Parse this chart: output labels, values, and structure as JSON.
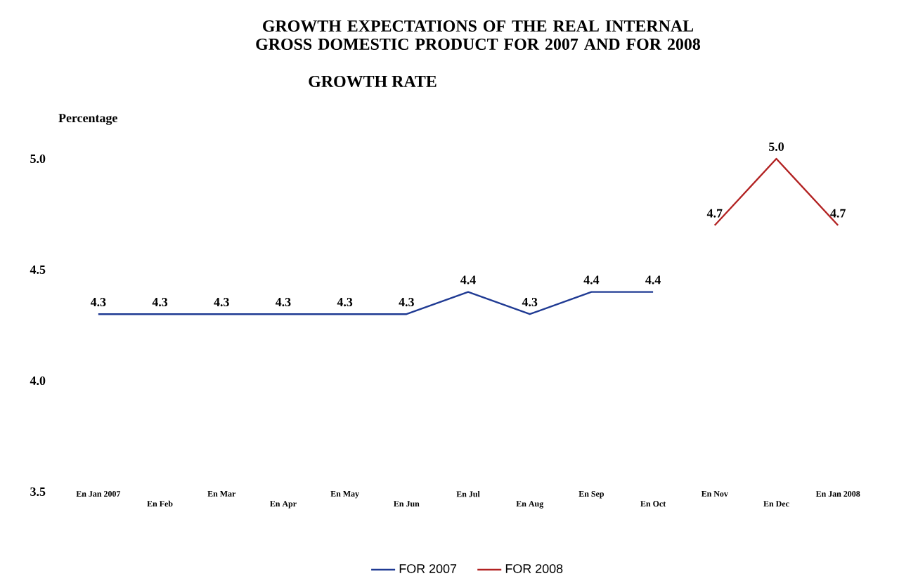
{
  "chart_data": {
    "type": "line",
    "title": "GROWTH EXPECTATIONS OF THE REAL INTERNAL GROSS DOMESTIC PRODUCT FOR 2007 AND FOR 2008",
    "subtitle": "GROWTH RATE",
    "ylabel": "Percentage",
    "categories": [
      "En Jan 2007",
      "En Feb",
      "En Mar",
      "En Apr",
      "En May",
      "En Jun",
      "En Jul",
      "En Aug",
      "En Sep",
      "En Oct",
      "En Nov",
      "En Dec",
      "En Jan 2008"
    ],
    "series": [
      {
        "name": "FOR 2007",
        "color": "#1f3a93",
        "values": [
          4.3,
          4.3,
          4.3,
          4.3,
          4.3,
          4.3,
          4.4,
          4.3,
          4.4,
          4.4,
          null,
          null,
          null
        ],
        "value_labels": [
          "4.3",
          "4.3",
          "4.3",
          "4.3",
          "4.3",
          "4.3",
          "4.4",
          "4.3",
          "4.4",
          "4.4",
          null,
          null,
          null
        ]
      },
      {
        "name": "FOR 2008",
        "color": "#b22222",
        "values": [
          null,
          null,
          null,
          null,
          null,
          null,
          null,
          null,
          null,
          null,
          4.7,
          5.0,
          4.7
        ],
        "value_labels": [
          null,
          null,
          null,
          null,
          null,
          null,
          null,
          null,
          null,
          null,
          "4.7",
          "5.0",
          "4.7"
        ]
      }
    ],
    "ylim": [
      3.5,
      5.0
    ],
    "yticks": [
      3.5,
      {
        "value": 4,
        "label": "4.0"
      },
      4.5,
      {
        "value": 5,
        "label": "5.0"
      }
    ],
    "grid": false,
    "legend": "bottom",
    "marker": "none",
    "line_style": "solid"
  }
}
